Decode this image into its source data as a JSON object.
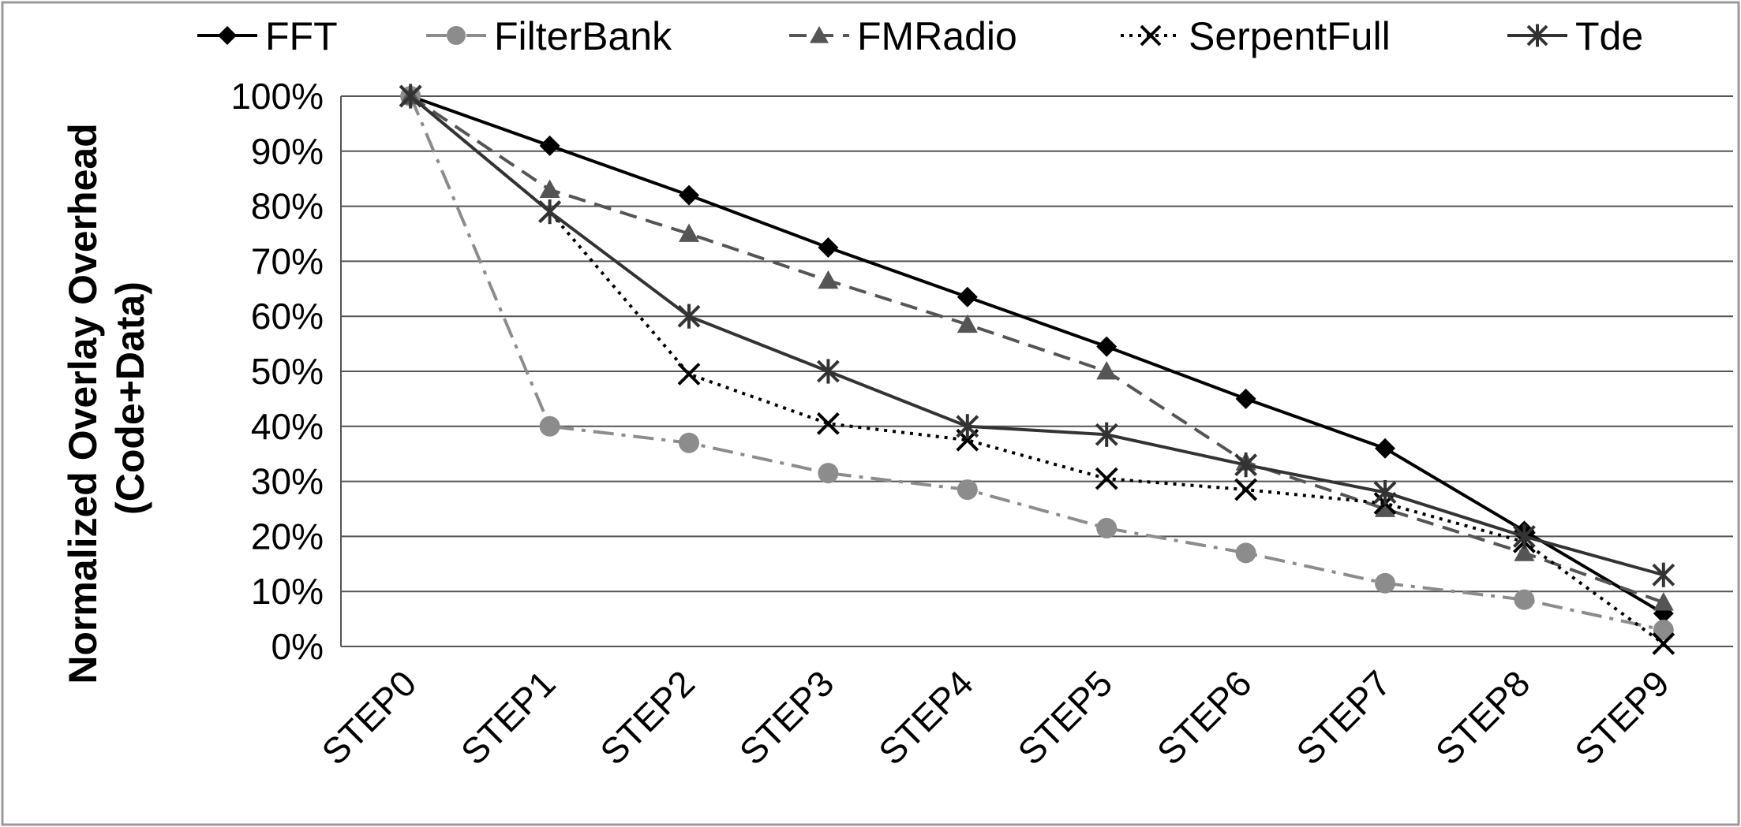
{
  "chart_data": {
    "type": "line",
    "title": "",
    "xlabel": "",
    "ylabel": "Normalized Overlay Overhead (Code+Data)",
    "ylabel_lines": [
      "Normalized Overlay Overhead",
      "(Code+Data)"
    ],
    "ylim": [
      0,
      100
    ],
    "y_ticks": [
      "0%",
      "10%",
      "20%",
      "30%",
      "40%",
      "50%",
      "60%",
      "70%",
      "80%",
      "90%",
      "100%"
    ],
    "grid": "horizontal",
    "legend": "top",
    "categories": [
      "STEP0",
      "STEP1",
      "STEP2",
      "STEP3",
      "STEP4",
      "STEP5",
      "STEP6",
      "STEP7",
      "STEP8",
      "STEP9"
    ],
    "series": [
      {
        "name": "FFT",
        "color": "#000000",
        "marker": "diamond",
        "dash": "solid",
        "values": [
          100,
          91,
          82,
          72.5,
          63.5,
          54.5,
          45,
          36,
          21,
          6
        ]
      },
      {
        "name": "FilterBank",
        "color": "#8c8c8c",
        "marker": "circle",
        "dash": "dashdot",
        "values": [
          100,
          40,
          37,
          31.5,
          28.5,
          21.5,
          17,
          11.5,
          8.5,
          3
        ]
      },
      {
        "name": "FMRadio",
        "color": "#555555",
        "marker": "triangle",
        "dash": "dashed",
        "values": [
          100,
          83,
          75,
          66.5,
          58.5,
          50,
          33.5,
          25,
          17,
          8
        ]
      },
      {
        "name": "SerpentFull",
        "color": "#000000",
        "marker": "x",
        "dash": "dotted",
        "values": [
          100,
          79,
          49.5,
          40.5,
          37.5,
          30.5,
          28.5,
          26,
          19,
          0.5
        ]
      },
      {
        "name": "Tde",
        "color": "#333333",
        "marker": "star",
        "dash": "solid",
        "values": [
          100,
          79,
          60,
          50,
          40,
          38.5,
          33,
          28,
          20,
          13
        ]
      }
    ]
  }
}
